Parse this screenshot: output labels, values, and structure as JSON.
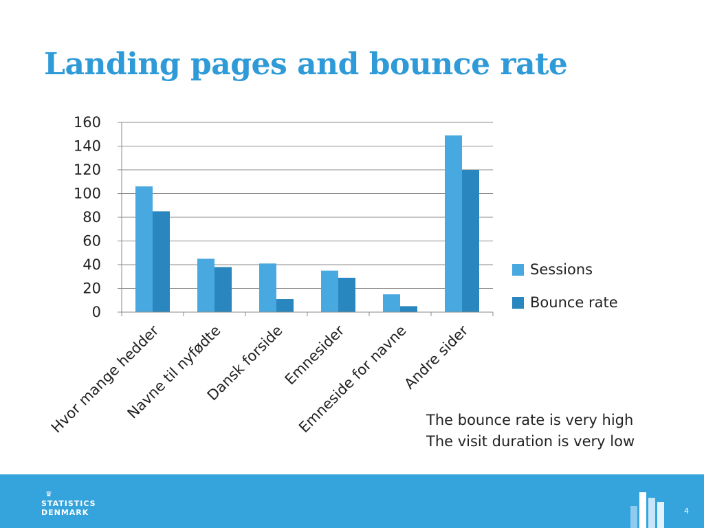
{
  "slide": {
    "title": "Landing pages and bounce rate",
    "note_lines": [
      "The bounce rate is very high",
      "The visit duration is very low"
    ],
    "page_number": "4"
  },
  "footer": {
    "logo_line1": "STATISTICS",
    "logo_line2": "DENMARK",
    "background_color": "#35a3dc"
  },
  "chart_data": {
    "type": "bar",
    "title": "",
    "xlabel": "",
    "ylabel": "",
    "categories": [
      "Hvor mange hedder",
      "Navne til nyfødte",
      "Dansk forside",
      "Emnesider",
      "Emneside for navne",
      "Andre sider"
    ],
    "series": [
      {
        "name": "Sessions",
        "color": "#48a8e0",
        "values": [
          106,
          45,
          41,
          35,
          15,
          149
        ]
      },
      {
        "name": "Bounce rate",
        "color": "#2a86bf",
        "values": [
          85,
          38,
          11,
          29,
          5,
          120
        ]
      }
    ],
    "ylim": [
      0,
      160
    ],
    "yticks": [
      "0",
      "20",
      "40",
      "60",
      "80",
      "100",
      "120",
      "140",
      "160"
    ],
    "grid": true,
    "legend_position": "right"
  }
}
